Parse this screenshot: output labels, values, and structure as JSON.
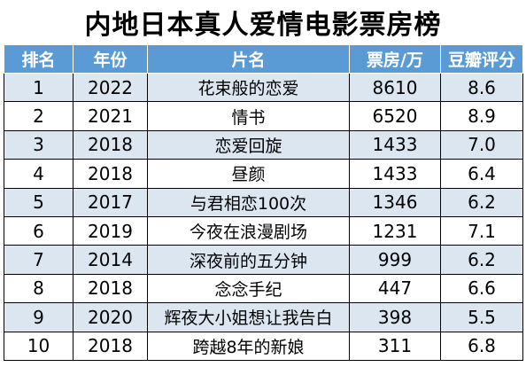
{
  "title": "内地日本真人爱情电影票房榜",
  "headers": [
    "排名",
    "年份",
    "片名",
    "票房/万",
    "豆瓣评分"
  ],
  "rows": [
    {
      "rank": "1",
      "year": "2022",
      "name": "花束般的恋爱",
      "box": "8610",
      "score": "8.6"
    },
    {
      "rank": "2",
      "year": "2021",
      "name": "情书",
      "box": "6520",
      "score": "8.9"
    },
    {
      "rank": "3",
      "year": "2018",
      "name": "恋爱回旋",
      "box": "1433",
      "score": "7.0"
    },
    {
      "rank": "4",
      "year": "2018",
      "name": "昼颜",
      "box": "1433",
      "score": "6.4"
    },
    {
      "rank": "5",
      "year": "2017",
      "name": "与君相恋100次",
      "box": "1346",
      "score": "6.2"
    },
    {
      "rank": "6",
      "year": "2019",
      "name": "今夜在浪漫剧场",
      "box": "1231",
      "score": "7.1"
    },
    {
      "rank": "7",
      "year": "2014",
      "name": "深夜前的五分钟",
      "box": "999",
      "score": "6.2"
    },
    {
      "rank": "8",
      "year": "2018",
      "name": "念念手纪",
      "box": "447",
      "score": "6.6"
    },
    {
      "rank": "9",
      "year": "2020",
      "name": "辉夜大小姐想让我告白",
      "box": "398",
      "score": "5.5"
    },
    {
      "rank": "10",
      "year": "2018",
      "name": "跨越8年的新娘",
      "box": "311",
      "score": "6.8"
    }
  ]
}
